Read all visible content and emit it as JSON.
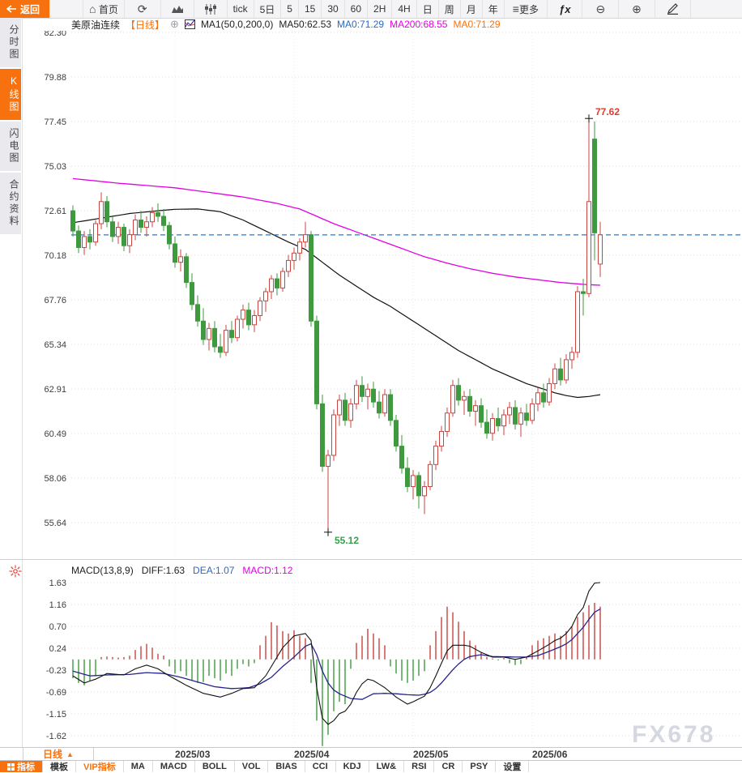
{
  "toolbar": {
    "back": "返回",
    "home": "首页",
    "items": [
      "tick",
      "5日",
      "5",
      "15",
      "30",
      "60",
      "2H",
      "4H",
      "日",
      "周",
      "月",
      "年"
    ],
    "more": "更多",
    "fx": "fx"
  },
  "sidebar": {
    "items": [
      {
        "label": "分时图",
        "active": false
      },
      {
        "label": "K线图",
        "active": true
      },
      {
        "label": "闪电图",
        "active": false
      },
      {
        "label": "合约资料",
        "active": false
      }
    ]
  },
  "chart_header": {
    "symbol": "美原油连续",
    "period": "【日线】",
    "ma_settings": "MA1(50,0,200,0)",
    "ma50": "MA50:62.53",
    "ma0_blue": "MA0:71.29",
    "ma200": "MA200:68.55",
    "ma0_orange": "MA0:71.29"
  },
  "macd_header": {
    "title": "MACD(13,8,9)",
    "diff": "DIFF:1.63",
    "dea": "DEA:1.07",
    "macd": "MACD:1.12"
  },
  "bottom": {
    "period_selector": "日线",
    "months": [
      "2025/03",
      "2025/04",
      "2025/05",
      "2025/06"
    ],
    "tabs": [
      {
        "label": "指标"
      },
      {
        "label": "模板"
      },
      {
        "label": "VIP指标"
      },
      {
        "label": "MA"
      },
      {
        "label": "MACD"
      },
      {
        "label": "BOLL"
      },
      {
        "label": "VOL"
      },
      {
        "label": "BIAS"
      },
      {
        "label": "CCI"
      },
      {
        "label": "KDJ"
      },
      {
        "label": "LW&"
      },
      {
        "label": "RSI"
      },
      {
        "label": "CR"
      },
      {
        "label": "PSY"
      },
      {
        "label": "设置"
      }
    ]
  },
  "watermark": "FX678",
  "colors": {
    "accent_orange": "#f7720e",
    "candle_up": "#c94540",
    "candle_down": "#3f9a3f",
    "last_price_line": "#1e7ce2",
    "ma200_line": "#e400e4",
    "ma50_line": "#111111",
    "dea_line": "#24248f",
    "annotation_high": "#e03b30",
    "annotation_low": "#35a04a"
  },
  "chart_data": {
    "type": "candlestick+macd",
    "title": "美原油连续 日线 (WTI Crude Continuous, Daily)",
    "price_axis": {
      "ticks": [
        82.3,
        79.88,
        77.45,
        75.03,
        72.61,
        70.18,
        67.76,
        65.34,
        62.91,
        60.49,
        58.06,
        55.64
      ],
      "last_price": 71.29
    },
    "macd_axis_ticks": [
      1.63,
      1.16,
      0.7,
      0.24,
      -0.23,
      -0.69,
      -1.15,
      -1.62
    ],
    "months": [
      {
        "label": "2025/03",
        "index": 18
      },
      {
        "label": "2025/04",
        "index": 39
      },
      {
        "label": "2025/05",
        "index": 60
      },
      {
        "label": "2025/06",
        "index": 81
      }
    ],
    "annotations": {
      "high": {
        "index": 91,
        "price": 77.62,
        "label": "77.62"
      },
      "low": {
        "index": 45,
        "price": 55.12,
        "label": "55.12"
      }
    },
    "indicators": {
      "ma50_last": 62.53,
      "ma200_last": 68.55,
      "diff_last": 1.63,
      "dea_last": 1.07,
      "macd_last": 1.12
    },
    "candles": [
      [
        72.6,
        72.9,
        71.2,
        71.5
      ],
      [
        71.5,
        71.8,
        70.3,
        70.6
      ],
      [
        70.6,
        71.5,
        70.2,
        71.2
      ],
      [
        71.2,
        71.6,
        70.5,
        70.9
      ],
      [
        70.9,
        72.1,
        70.7,
        71.9
      ],
      [
        71.9,
        73.6,
        71.6,
        73.1
      ],
      [
        73.1,
        73.4,
        71.7,
        72.0
      ],
      [
        72.0,
        72.3,
        70.9,
        71.2
      ],
      [
        71.2,
        72.0,
        70.8,
        71.7
      ],
      [
        71.7,
        71.9,
        70.4,
        70.7
      ],
      [
        70.7,
        71.6,
        70.3,
        71.3
      ],
      [
        71.3,
        72.4,
        71.0,
        72.1
      ],
      [
        72.1,
        72.6,
        71.4,
        71.7
      ],
      [
        71.7,
        72.3,
        71.2,
        72.0
      ],
      [
        72.0,
        72.8,
        71.7,
        72.5
      ],
      [
        72.5,
        73.0,
        72.0,
        72.3
      ],
      [
        72.3,
        72.7,
        71.5,
        71.8
      ],
      [
        71.8,
        72.0,
        70.5,
        70.8
      ],
      [
        70.8,
        71.2,
        69.5,
        69.8
      ],
      [
        69.8,
        70.5,
        69.3,
        70.1
      ],
      [
        70.1,
        70.3,
        68.4,
        68.7
      ],
      [
        68.7,
        69.2,
        67.2,
        67.5
      ],
      [
        67.5,
        68.0,
        66.3,
        66.6
      ],
      [
        66.6,
        67.3,
        65.3,
        65.6
      ],
      [
        65.6,
        66.5,
        65.0,
        66.2
      ],
      [
        66.2,
        66.6,
        64.9,
        65.2
      ],
      [
        65.2,
        65.9,
        64.6,
        64.9
      ],
      [
        64.9,
        66.4,
        64.7,
        66.1
      ],
      [
        66.1,
        66.6,
        65.4,
        65.7
      ],
      [
        65.7,
        66.9,
        65.5,
        66.7
      ],
      [
        66.7,
        67.5,
        66.2,
        67.2
      ],
      [
        67.2,
        67.6,
        66.1,
        66.4
      ],
      [
        66.4,
        67.2,
        66.0,
        66.9
      ],
      [
        66.9,
        67.9,
        66.6,
        67.7
      ],
      [
        67.7,
        68.4,
        67.1,
        68.2
      ],
      [
        68.2,
        69.1,
        67.8,
        68.9
      ],
      [
        68.9,
        69.2,
        68.0,
        68.4
      ],
      [
        68.4,
        69.5,
        68.2,
        69.3
      ],
      [
        69.3,
        70.2,
        69.0,
        69.9
      ],
      [
        69.9,
        70.6,
        69.4,
        70.3
      ],
      [
        70.3,
        71.1,
        69.9,
        70.9
      ],
      [
        70.9,
        72.0,
        70.6,
        71.3
      ],
      [
        71.3,
        71.5,
        66.3,
        66.6
      ],
      [
        66.6,
        66.9,
        61.8,
        62.1
      ],
      [
        62.1,
        62.6,
        58.4,
        58.7
      ],
      [
        58.7,
        59.6,
        55.12,
        59.3
      ],
      [
        59.3,
        61.8,
        59.0,
        61.5
      ],
      [
        61.5,
        62.6,
        60.9,
        62.3
      ],
      [
        62.3,
        62.7,
        60.9,
        61.2
      ],
      [
        61.2,
        62.4,
        60.8,
        62.1
      ],
      [
        62.1,
        63.4,
        61.8,
        63.1
      ],
      [
        63.1,
        63.6,
        62.2,
        62.5
      ],
      [
        62.5,
        63.2,
        61.8,
        62.9
      ],
      [
        62.9,
        63.3,
        61.9,
        62.2
      ],
      [
        62.2,
        62.8,
        61.3,
        61.6
      ],
      [
        61.6,
        62.9,
        61.4,
        62.6
      ],
      [
        62.6,
        62.9,
        60.9,
        61.2
      ],
      [
        61.2,
        61.5,
        59.5,
        59.8
      ],
      [
        59.8,
        60.4,
        58.3,
        58.6
      ],
      [
        58.6,
        59.2,
        57.3,
        57.6
      ],
      [
        57.6,
        58.5,
        56.9,
        58.2
      ],
      [
        58.2,
        58.4,
        56.4,
        57.1
      ],
      [
        57.1,
        57.9,
        56.1,
        57.6
      ],
      [
        57.6,
        59.0,
        57.4,
        58.8
      ],
      [
        58.8,
        60.1,
        58.5,
        59.8
      ],
      [
        59.8,
        60.9,
        59.5,
        60.6
      ],
      [
        60.6,
        61.9,
        60.3,
        61.6
      ],
      [
        61.6,
        63.4,
        61.4,
        63.1
      ],
      [
        63.1,
        63.5,
        62.0,
        62.3
      ],
      [
        62.3,
        62.8,
        61.5,
        62.5
      ],
      [
        62.5,
        62.9,
        61.4,
        61.7
      ],
      [
        61.7,
        62.3,
        60.9,
        62.0
      ],
      [
        62.0,
        62.4,
        60.8,
        61.1
      ],
      [
        61.1,
        61.8,
        60.2,
        60.5
      ],
      [
        60.5,
        61.6,
        60.1,
        61.3
      ],
      [
        61.3,
        61.9,
        60.6,
        60.9
      ],
      [
        60.9,
        61.8,
        60.4,
        61.5
      ],
      [
        61.5,
        62.2,
        61.0,
        61.9
      ],
      [
        61.9,
        62.3,
        60.7,
        61.0
      ],
      [
        61.0,
        61.9,
        60.3,
        61.6
      ],
      [
        61.6,
        62.1,
        60.9,
        61.2
      ],
      [
        61.2,
        62.4,
        61.0,
        62.1
      ],
      [
        62.1,
        63.0,
        61.7,
        62.7
      ],
      [
        62.7,
        63.2,
        61.9,
        62.2
      ],
      [
        62.2,
        63.5,
        62.0,
        63.2
      ],
      [
        63.2,
        64.3,
        62.9,
        64.0
      ],
      [
        64.0,
        64.6,
        63.1,
        63.4
      ],
      [
        63.4,
        64.8,
        63.2,
        64.5
      ],
      [
        64.5,
        65.2,
        64.0,
        64.9
      ],
      [
        64.9,
        68.5,
        64.6,
        68.2
      ],
      [
        68.2,
        68.9,
        66.9,
        68.1
      ],
      [
        68.1,
        77.62,
        67.9,
        73.1
      ],
      [
        76.5,
        77.45,
        69.9,
        71.4
      ],
      [
        69.7,
        72.0,
        69.0,
        71.29
      ]
    ],
    "ma50_keypoints": [
      [
        0,
        71.95
      ],
      [
        5,
        72.2
      ],
      [
        10,
        72.45
      ],
      [
        15,
        72.6
      ],
      [
        18,
        72.68
      ],
      [
        22,
        72.7
      ],
      [
        26,
        72.55
      ],
      [
        30,
        72.1
      ],
      [
        34,
        71.5
      ],
      [
        38,
        70.9
      ],
      [
        41,
        70.5
      ],
      [
        44,
        69.8
      ],
      [
        47,
        69.1
      ],
      [
        50,
        68.5
      ],
      [
        53,
        67.9
      ],
      [
        56,
        67.4
      ],
      [
        59,
        66.8
      ],
      [
        62,
        66.2
      ],
      [
        65,
        65.6
      ],
      [
        68,
        65.0
      ],
      [
        71,
        64.5
      ],
      [
        74,
        64.0
      ],
      [
        77,
        63.6
      ],
      [
        80,
        63.2
      ],
      [
        83,
        62.9
      ],
      [
        85,
        62.7
      ],
      [
        87,
        62.55
      ],
      [
        89,
        62.45
      ],
      [
        91,
        62.5
      ],
      [
        93,
        62.6
      ]
    ],
    "ma200_keypoints": [
      [
        0,
        74.35
      ],
      [
        8,
        74.1
      ],
      [
        14,
        73.95
      ],
      [
        18,
        73.85
      ],
      [
        24,
        73.6
      ],
      [
        30,
        73.35
      ],
      [
        36,
        73.0
      ],
      [
        40,
        72.7
      ],
      [
        43,
        72.3
      ],
      [
        46,
        71.9
      ],
      [
        50,
        71.45
      ],
      [
        54,
        71.0
      ],
      [
        58,
        70.55
      ],
      [
        62,
        70.1
      ],
      [
        66,
        69.75
      ],
      [
        70,
        69.45
      ],
      [
        74,
        69.2
      ],
      [
        78,
        69.0
      ],
      [
        82,
        68.85
      ],
      [
        86,
        68.7
      ],
      [
        90,
        68.6
      ],
      [
        93,
        68.55
      ]
    ],
    "macd": {
      "params": "13,8,9",
      "hist": [
        -0.4,
        -0.5,
        -0.55,
        -0.45,
        -0.35,
        0.05,
        0.06,
        0.05,
        0.04,
        0.05,
        0.08,
        0.2,
        0.28,
        0.33,
        0.25,
        0.12,
        0.08,
        -0.15,
        -0.3,
        -0.25,
        -0.35,
        -0.45,
        -0.5,
        -0.48,
        -0.35,
        -0.4,
        -0.45,
        -0.3,
        -0.35,
        -0.2,
        -0.1,
        -0.15,
        -0.08,
        0.3,
        0.5,
        0.79,
        0.72,
        0.6,
        0.55,
        0.62,
        0.5,
        0.45,
        -0.5,
        -1.3,
        -1.84,
        -1.6,
        -1.1,
        -0.9,
        -0.95,
        -0.2,
        0.35,
        0.5,
        0.65,
        0.55,
        0.45,
        0.3,
        -0.15,
        -0.3,
        -0.45,
        -0.5,
        -0.45,
        -0.35,
        -0.25,
        0.3,
        0.6,
        0.9,
        1.12,
        1.0,
        0.8,
        0.6,
        0.4,
        0.3,
        0.15,
        0.05,
        0.02,
        -0.02,
        0.03,
        -0.08,
        -0.12,
        -0.1,
        0.05,
        0.3,
        0.4,
        0.45,
        0.5,
        0.55,
        0.5,
        0.6,
        0.7,
        0.9,
        1.0,
        1.15,
        1.2,
        1.12
      ],
      "diff_keypoints": [
        [
          0,
          -0.35
        ],
        [
          2,
          -0.5
        ],
        [
          4,
          -0.42
        ],
        [
          6,
          -0.3
        ],
        [
          9,
          -0.33
        ],
        [
          11,
          -0.2
        ],
        [
          13,
          -0.12
        ],
        [
          15,
          -0.2
        ],
        [
          17,
          -0.35
        ],
        [
          20,
          -0.55
        ],
        [
          23,
          -0.72
        ],
        [
          26,
          -0.8
        ],
        [
          28,
          -0.72
        ],
        [
          30,
          -0.62
        ],
        [
          32,
          -0.6
        ],
        [
          34,
          -0.35
        ],
        [
          35,
          -0.15
        ],
        [
          37,
          0.25
        ],
        [
          39,
          0.5
        ],
        [
          41,
          0.55
        ],
        [
          42,
          0.4
        ],
        [
          43,
          -0.6
        ],
        [
          44,
          -1.25
        ],
        [
          45,
          -1.38
        ],
        [
          46,
          -1.3
        ],
        [
          47,
          -1.15
        ],
        [
          48,
          -1.1
        ],
        [
          49,
          -0.95
        ],
        [
          50,
          -0.7
        ],
        [
          51,
          -0.52
        ],
        [
          52,
          -0.42
        ],
        [
          53,
          -0.45
        ],
        [
          55,
          -0.6
        ],
        [
          57,
          -0.8
        ],
        [
          59,
          -0.95
        ],
        [
          60,
          -0.9
        ],
        [
          62,
          -0.78
        ],
        [
          63,
          -0.6
        ],
        [
          64,
          -0.35
        ],
        [
          65,
          -0.08
        ],
        [
          66,
          0.18
        ],
        [
          67,
          0.3
        ],
        [
          69,
          0.3
        ],
        [
          70,
          0.28
        ],
        [
          72,
          0.15
        ],
        [
          74,
          0.05
        ],
        [
          76,
          0.05
        ],
        [
          78,
          0.0
        ],
        [
          80,
          0.05
        ],
        [
          82,
          0.18
        ],
        [
          84,
          0.32
        ],
        [
          85,
          0.4
        ],
        [
          86,
          0.45
        ],
        [
          87,
          0.55
        ],
        [
          88,
          0.7
        ],
        [
          89,
          0.95
        ],
        [
          90,
          1.1
        ],
        [
          91,
          1.45
        ],
        [
          92,
          1.62
        ],
        [
          93,
          1.63
        ]
      ],
      "dea_keypoints": [
        [
          0,
          -0.25
        ],
        [
          3,
          -0.35
        ],
        [
          6,
          -0.33
        ],
        [
          10,
          -0.32
        ],
        [
          13,
          -0.28
        ],
        [
          16,
          -0.3
        ],
        [
          19,
          -0.38
        ],
        [
          22,
          -0.48
        ],
        [
          25,
          -0.58
        ],
        [
          28,
          -0.62
        ],
        [
          31,
          -0.6
        ],
        [
          33,
          -0.52
        ],
        [
          35,
          -0.38
        ],
        [
          37,
          -0.15
        ],
        [
          39,
          0.05
        ],
        [
          41,
          0.28
        ],
        [
          42,
          0.33
        ],
        [
          43,
          0.1
        ],
        [
          44,
          -0.25
        ],
        [
          45,
          -0.5
        ],
        [
          46,
          -0.65
        ],
        [
          47,
          -0.73
        ],
        [
          49,
          -0.83
        ],
        [
          51,
          -0.85
        ],
        [
          53,
          -0.73
        ],
        [
          55,
          -0.72
        ],
        [
          57,
          -0.73
        ],
        [
          59,
          -0.75
        ],
        [
          61,
          -0.76
        ],
        [
          62,
          -0.74
        ],
        [
          63,
          -0.7
        ],
        [
          64,
          -0.62
        ],
        [
          65,
          -0.5
        ],
        [
          66,
          -0.36
        ],
        [
          67,
          -0.22
        ],
        [
          68,
          -0.1
        ],
        [
          69,
          0.0
        ],
        [
          70,
          0.06
        ],
        [
          72,
          0.1
        ],
        [
          74,
          0.06
        ],
        [
          78,
          0.05
        ],
        [
          80,
          0.05
        ],
        [
          82,
          0.08
        ],
        [
          84,
          0.17
        ],
        [
          86,
          0.27
        ],
        [
          87,
          0.33
        ],
        [
          88,
          0.42
        ],
        [
          89,
          0.55
        ],
        [
          90,
          0.68
        ],
        [
          91,
          0.85
        ],
        [
          92,
          1.0
        ],
        [
          93,
          1.07
        ]
      ]
    }
  }
}
